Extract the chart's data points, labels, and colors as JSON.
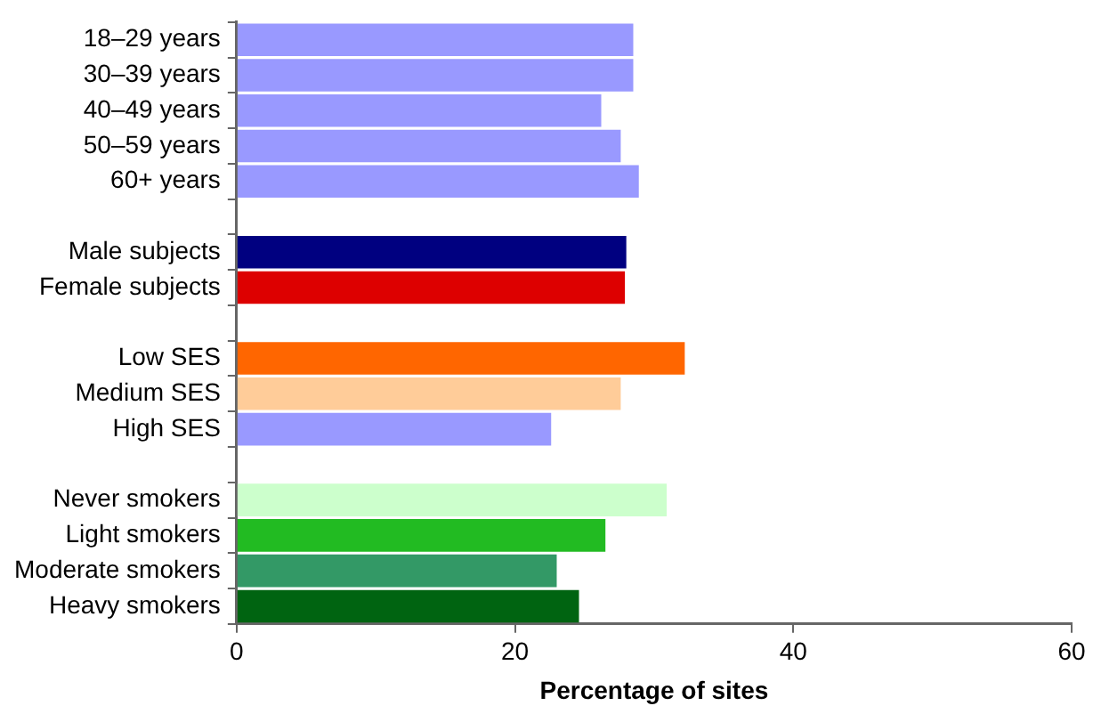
{
  "chart_data": {
    "type": "bar",
    "orientation": "horizontal",
    "xlabel": "Percentage of sites",
    "categories": [
      "18–29 years",
      "30–39 years",
      "40–49 years",
      "50–59 years",
      "60+ years",
      null,
      "Male subjects",
      "Female subjects",
      null,
      "Low SES",
      "Medium SES",
      "High SES",
      null,
      "Never smokers",
      "Light smokers",
      "Moderate smokers",
      "Heavy smokers"
    ],
    "values": [
      28.5,
      28.5,
      26.2,
      27.6,
      28.9,
      null,
      28.0,
      27.9,
      null,
      32.2,
      27.6,
      22.6,
      null,
      30.9,
      26.5,
      23.0,
      24.6
    ],
    "colors": [
      "#9999ff",
      "#9999ff",
      "#9999ff",
      "#9999ff",
      "#9999ff",
      "#ffffff",
      "#000080",
      "#dd0000",
      "#ffffff",
      "#ff6600",
      "#ffcc99",
      "#9999ff",
      "#ffffff",
      "#ccffcc",
      "#22bb22",
      "#339966",
      "#006411"
    ],
    "xlim": [
      0,
      60
    ],
    "xticks": [
      0,
      20,
      40,
      60
    ],
    "grid": false,
    "legend": false
  }
}
